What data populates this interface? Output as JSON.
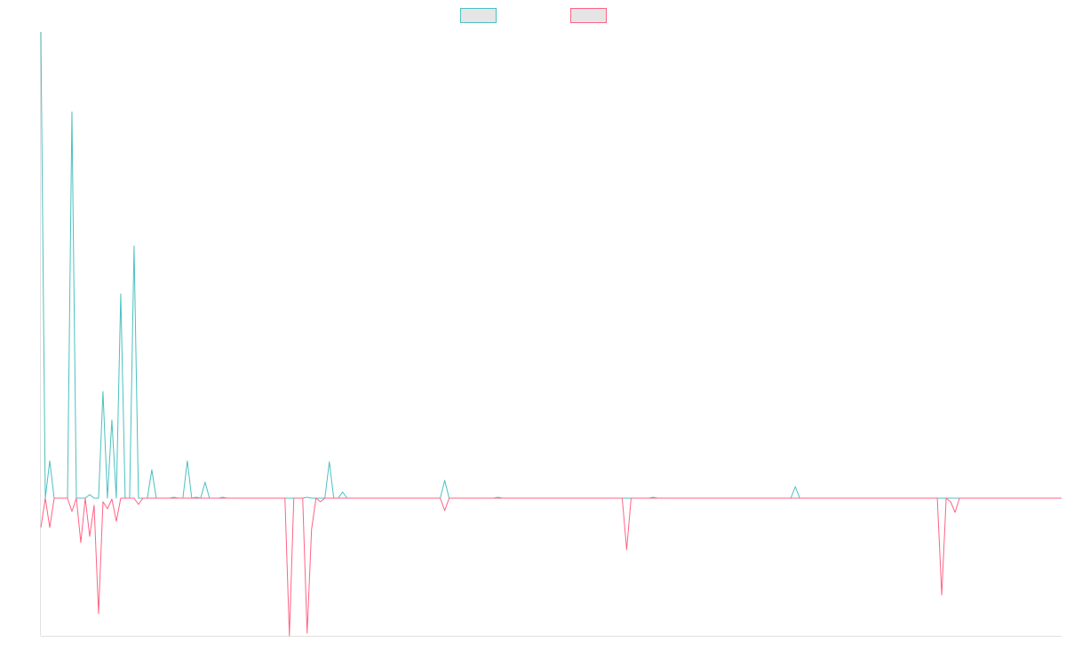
{
  "chart_data": {
    "type": "line",
    "title": "",
    "xlabel": "",
    "ylabel": "",
    "grid": false,
    "legend_placement": "top-center",
    "ylim": [
      -155,
      525
    ],
    "x_count": 231,
    "colors": {
      "legend_fill": "#e5e5e5",
      "axis": "#e0e0e0"
    },
    "series": [
      {
        "color": "#4bc0c0",
        "points": [
          [
            0,
            525
          ],
          [
            2,
            42
          ],
          [
            7,
            435
          ],
          [
            11,
            4
          ],
          [
            14,
            120
          ],
          [
            16,
            88
          ],
          [
            18,
            230
          ],
          [
            21,
            284
          ],
          [
            25,
            32
          ],
          [
            30,
            1
          ],
          [
            33,
            42
          ],
          [
            35,
            1
          ],
          [
            37,
            18
          ],
          [
            41,
            1
          ],
          [
            60,
            1
          ],
          [
            65,
            41
          ],
          [
            68,
            7
          ],
          [
            91,
            20
          ],
          [
            103,
            1
          ],
          [
            138,
            1
          ],
          [
            170,
            13
          ],
          [
            230,
            0
          ]
        ]
      },
      {
        "color": "#ff6384",
        "points": [
          [
            0,
            -33
          ],
          [
            1,
            0
          ],
          [
            2,
            -33
          ],
          [
            7,
            -15
          ],
          [
            9,
            -50
          ],
          [
            11,
            -43
          ],
          [
            12,
            -8
          ],
          [
            13,
            -130
          ],
          [
            14,
            -4
          ],
          [
            15,
            -12
          ],
          [
            16,
            -1
          ],
          [
            17,
            -26
          ],
          [
            22,
            -7
          ],
          [
            56,
            -155
          ],
          [
            60,
            -152
          ],
          [
            61,
            -35
          ],
          [
            63,
            -4
          ],
          [
            91,
            -14
          ],
          [
            132,
            -58
          ],
          [
            203,
            -109
          ],
          [
            205,
            -4
          ],
          [
            206,
            -16
          ],
          [
            230,
            0
          ]
        ]
      }
    ]
  }
}
